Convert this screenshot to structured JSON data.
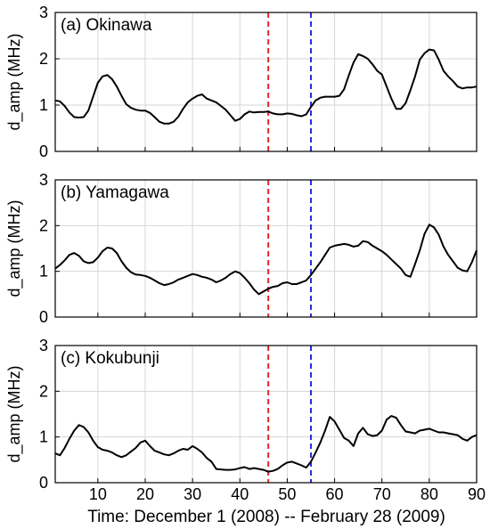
{
  "figure": {
    "xlabel": "Time: December 1 (2008) -- February 28 (2009)"
  },
  "chart_data": [
    {
      "type": "line",
      "title": "(a) Okinawa",
      "ylabel": "d_amp (MHz)",
      "xlim": [
        1,
        90
      ],
      "ylim": [
        0,
        3
      ],
      "xticks": [
        10,
        20,
        30,
        40,
        50,
        60,
        70,
        80,
        90
      ],
      "yticks": [
        0,
        1,
        2,
        3
      ],
      "grid": true,
      "vlines": [
        {
          "x": 46,
          "color": "#e8262a"
        },
        {
          "x": 55,
          "color": "#2a2ae0"
        }
      ],
      "series": [
        {
          "color": "#000000",
          "x": [
            1,
            2,
            3,
            4,
            5,
            6,
            7,
            8,
            9,
            10,
            11,
            12,
            13,
            14,
            15,
            16,
            17,
            18,
            19,
            20,
            21,
            22,
            23,
            24,
            25,
            26,
            27,
            28,
            29,
            30,
            31,
            32,
            33,
            34,
            35,
            36,
            37,
            38,
            39,
            40,
            41,
            42,
            43,
            44,
            45,
            46,
            47,
            48,
            49,
            50,
            51,
            52,
            53,
            54,
            55,
            56,
            57,
            58,
            59,
            60,
            61,
            62,
            63,
            64,
            65,
            66,
            67,
            68,
            69,
            70,
            71,
            72,
            73,
            74,
            75,
            76,
            77,
            78,
            79,
            80,
            81,
            82,
            83,
            84,
            85,
            86,
            87,
            88,
            89,
            90
          ],
          "y": [
            1.1,
            1.08,
            0.98,
            0.84,
            0.74,
            0.73,
            0.74,
            0.88,
            1.18,
            1.48,
            1.62,
            1.65,
            1.56,
            1.4,
            1.2,
            1.02,
            0.94,
            0.9,
            0.88,
            0.88,
            0.83,
            0.74,
            0.64,
            0.6,
            0.6,
            0.64,
            0.75,
            0.92,
            1.06,
            1.14,
            1.2,
            1.23,
            1.14,
            1.1,
            1.06,
            0.98,
            0.9,
            0.78,
            0.66,
            0.7,
            0.8,
            0.86,
            0.84,
            0.85,
            0.85,
            0.86,
            0.82,
            0.8,
            0.8,
            0.82,
            0.81,
            0.78,
            0.76,
            0.8,
            0.96,
            1.1,
            1.16,
            1.18,
            1.18,
            1.18,
            1.2,
            1.34,
            1.64,
            1.92,
            2.1,
            2.06,
            2.0,
            1.88,
            1.74,
            1.66,
            1.4,
            1.14,
            0.92,
            0.92,
            1.04,
            1.32,
            1.62,
            1.98,
            2.12,
            2.2,
            2.18,
            1.98,
            1.74,
            1.62,
            1.52,
            1.4,
            1.36,
            1.38,
            1.38,
            1.4
          ]
        }
      ]
    },
    {
      "type": "line",
      "title": "(b) Yamagawa",
      "ylabel": "d_amp (MHz)",
      "xlim": [
        1,
        90
      ],
      "ylim": [
        0,
        3
      ],
      "xticks": [
        10,
        20,
        30,
        40,
        50,
        60,
        70,
        80,
        90
      ],
      "yticks": [
        0,
        1,
        2,
        3
      ],
      "grid": true,
      "vlines": [
        {
          "x": 46,
          "color": "#e8262a"
        },
        {
          "x": 55,
          "color": "#2a2ae0"
        }
      ],
      "series": [
        {
          "color": "#000000",
          "x": [
            1,
            2,
            3,
            4,
            5,
            6,
            7,
            8,
            9,
            10,
            11,
            12,
            13,
            14,
            15,
            16,
            17,
            18,
            19,
            20,
            21,
            22,
            23,
            24,
            25,
            26,
            27,
            28,
            29,
            30,
            31,
            32,
            33,
            34,
            35,
            36,
            37,
            38,
            39,
            40,
            41,
            42,
            43,
            44,
            45,
            46,
            47,
            48,
            49,
            50,
            51,
            52,
            53,
            54,
            55,
            56,
            57,
            58,
            59,
            60,
            61,
            62,
            63,
            64,
            65,
            66,
            67,
            68,
            69,
            70,
            71,
            72,
            73,
            74,
            75,
            76,
            77,
            78,
            79,
            80,
            81,
            82,
            83,
            84,
            85,
            86,
            87,
            88,
            89,
            90
          ],
          "y": [
            1.06,
            1.14,
            1.24,
            1.36,
            1.4,
            1.34,
            1.22,
            1.18,
            1.2,
            1.3,
            1.44,
            1.52,
            1.5,
            1.4,
            1.22,
            1.08,
            0.98,
            0.93,
            0.92,
            0.9,
            0.86,
            0.8,
            0.74,
            0.7,
            0.72,
            0.76,
            0.82,
            0.86,
            0.9,
            0.94,
            0.92,
            0.88,
            0.86,
            0.82,
            0.76,
            0.8,
            0.86,
            0.94,
            1.0,
            0.96,
            0.86,
            0.74,
            0.6,
            0.5,
            0.56,
            0.62,
            0.66,
            0.68,
            0.74,
            0.76,
            0.72,
            0.72,
            0.76,
            0.8,
            0.92,
            1.06,
            1.2,
            1.36,
            1.52,
            1.56,
            1.58,
            1.6,
            1.58,
            1.54,
            1.56,
            1.66,
            1.64,
            1.56,
            1.5,
            1.44,
            1.36,
            1.26,
            1.16,
            1.06,
            0.92,
            0.88,
            1.16,
            1.46,
            1.82,
            2.02,
            1.96,
            1.8,
            1.54,
            1.36,
            1.22,
            1.08,
            1.02,
            1.0,
            1.2,
            1.46
          ]
        }
      ]
    },
    {
      "type": "line",
      "title": "(c) Kokubunji",
      "ylabel": "d_amp (MHz)",
      "xlim": [
        1,
        90
      ],
      "ylim": [
        0,
        3
      ],
      "xticks": [
        10,
        20,
        30,
        40,
        50,
        60,
        70,
        80,
        90
      ],
      "yticks": [
        0,
        1,
        2,
        3
      ],
      "grid": true,
      "vlines": [
        {
          "x": 46,
          "color": "#e8262a"
        },
        {
          "x": 55,
          "color": "#2a2ae0"
        }
      ],
      "series": [
        {
          "color": "#000000",
          "x": [
            1,
            2,
            3,
            4,
            5,
            6,
            7,
            8,
            9,
            10,
            11,
            12,
            13,
            14,
            15,
            16,
            17,
            18,
            19,
            20,
            21,
            22,
            23,
            24,
            25,
            26,
            27,
            28,
            29,
            30,
            31,
            32,
            33,
            34,
            35,
            36,
            37,
            38,
            39,
            40,
            41,
            42,
            43,
            44,
            45,
            46,
            47,
            48,
            49,
            50,
            51,
            52,
            53,
            54,
            55,
            56,
            57,
            58,
            59,
            60,
            61,
            62,
            63,
            64,
            65,
            66,
            67,
            68,
            69,
            70,
            71,
            72,
            73,
            74,
            75,
            76,
            77,
            78,
            79,
            80,
            81,
            82,
            83,
            84,
            85,
            86,
            87,
            88,
            89,
            90
          ],
          "y": [
            0.64,
            0.6,
            0.76,
            0.96,
            1.14,
            1.26,
            1.22,
            1.1,
            0.92,
            0.78,
            0.72,
            0.7,
            0.66,
            0.6,
            0.56,
            0.6,
            0.68,
            0.76,
            0.88,
            0.92,
            0.8,
            0.7,
            0.66,
            0.62,
            0.6,
            0.64,
            0.7,
            0.74,
            0.72,
            0.8,
            0.74,
            0.66,
            0.54,
            0.46,
            0.3,
            0.29,
            0.28,
            0.28,
            0.29,
            0.32,
            0.34,
            0.3,
            0.32,
            0.3,
            0.28,
            0.24,
            0.26,
            0.3,
            0.38,
            0.44,
            0.46,
            0.42,
            0.38,
            0.33,
            0.46,
            0.66,
            0.88,
            1.14,
            1.44,
            1.34,
            1.16,
            0.98,
            0.92,
            0.8,
            1.08,
            1.2,
            1.06,
            1.02,
            1.04,
            1.14,
            1.38,
            1.46,
            1.42,
            1.26,
            1.12,
            1.1,
            1.08,
            1.14,
            1.16,
            1.18,
            1.14,
            1.1,
            1.1,
            1.08,
            1.06,
            1.04,
            0.96,
            0.92,
            1.0,
            1.04
          ]
        }
      ]
    }
  ]
}
